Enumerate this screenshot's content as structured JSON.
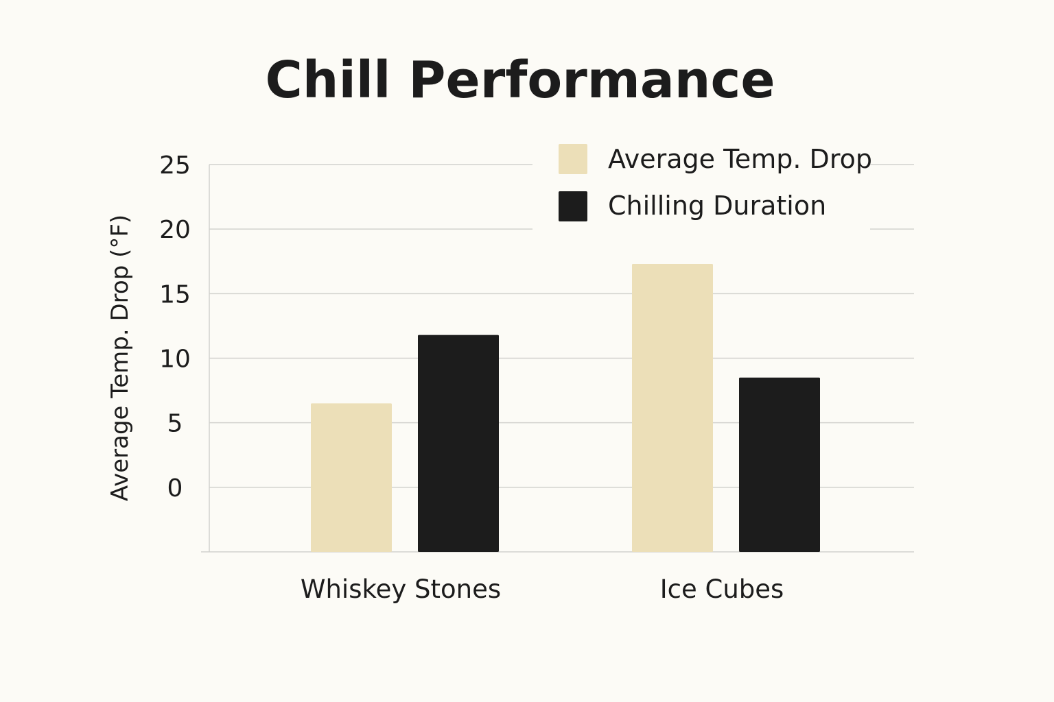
{
  "chart_data": {
    "type": "bar",
    "title": "Chill Performance",
    "xlabel": "",
    "ylabel": "Average Temp. Drop (°F)",
    "categories": [
      "Whiskey Stones",
      "Ice Cubes"
    ],
    "series": [
      {
        "name": "Average Temp. Drop",
        "color": "#ecdfb8",
        "values": [
          6.5,
          17.3
        ]
      },
      {
        "name": "Chilling Duration",
        "color": "#1c1c1c",
        "values": [
          11.8,
          8.5
        ]
      }
    ],
    "yticks": [
      0,
      5,
      10,
      15,
      20,
      25
    ],
    "ylim": [
      -5,
      25
    ],
    "grid": true,
    "legend_position": "top-right"
  }
}
